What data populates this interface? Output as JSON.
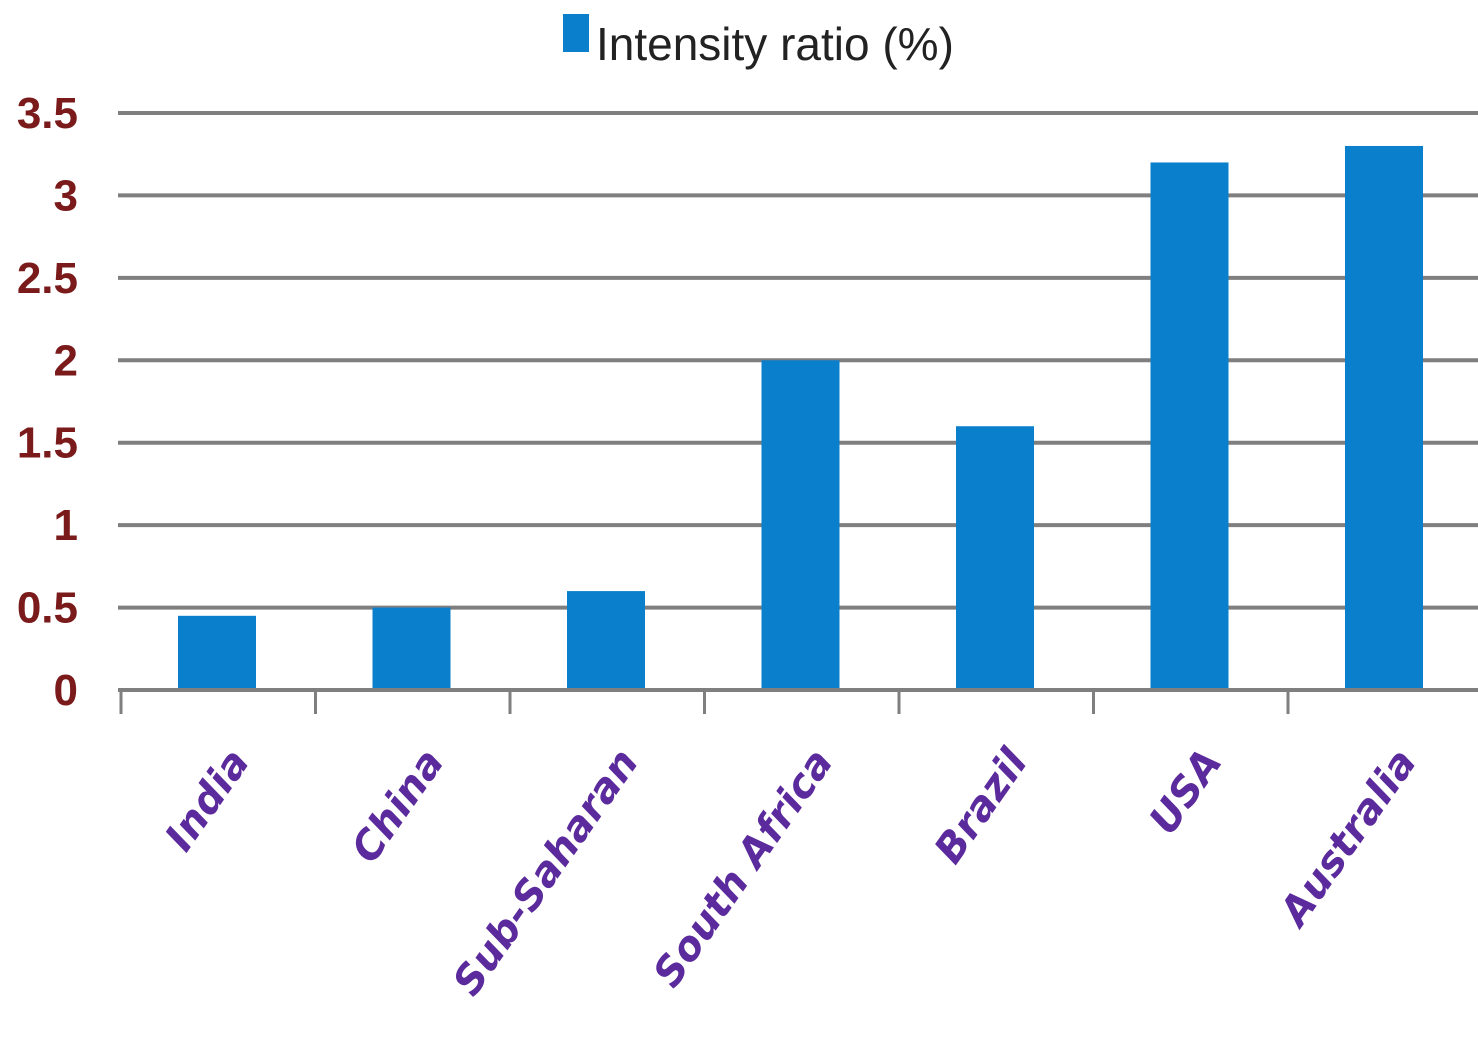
{
  "chart_data": {
    "type": "bar",
    "categories": [
      "India",
      "China",
      "Sub-Saharan",
      "South Africa",
      "Brazil",
      "USA",
      "Australia"
    ],
    "series": [
      {
        "name": "Intensity ratio (%)",
        "values": [
          0.45,
          0.5,
          0.6,
          2.0,
          1.6,
          3.2,
          3.3
        ]
      }
    ],
    "ylim": [
      0,
      3.5
    ],
    "yticks": [
      "0",
      "0.5",
      "1",
      "1.5",
      "2",
      "2.5",
      "3",
      "3.5"
    ],
    "title": "",
    "xlabel": "",
    "ylabel": "",
    "grid": true,
    "legend_position": "top-center",
    "colors": {
      "bar": "#0a7fcb",
      "grid": "#7f7f7f",
      "ytick_text": "#7a1a1a",
      "xtick_text": "#5b2a9c"
    }
  }
}
